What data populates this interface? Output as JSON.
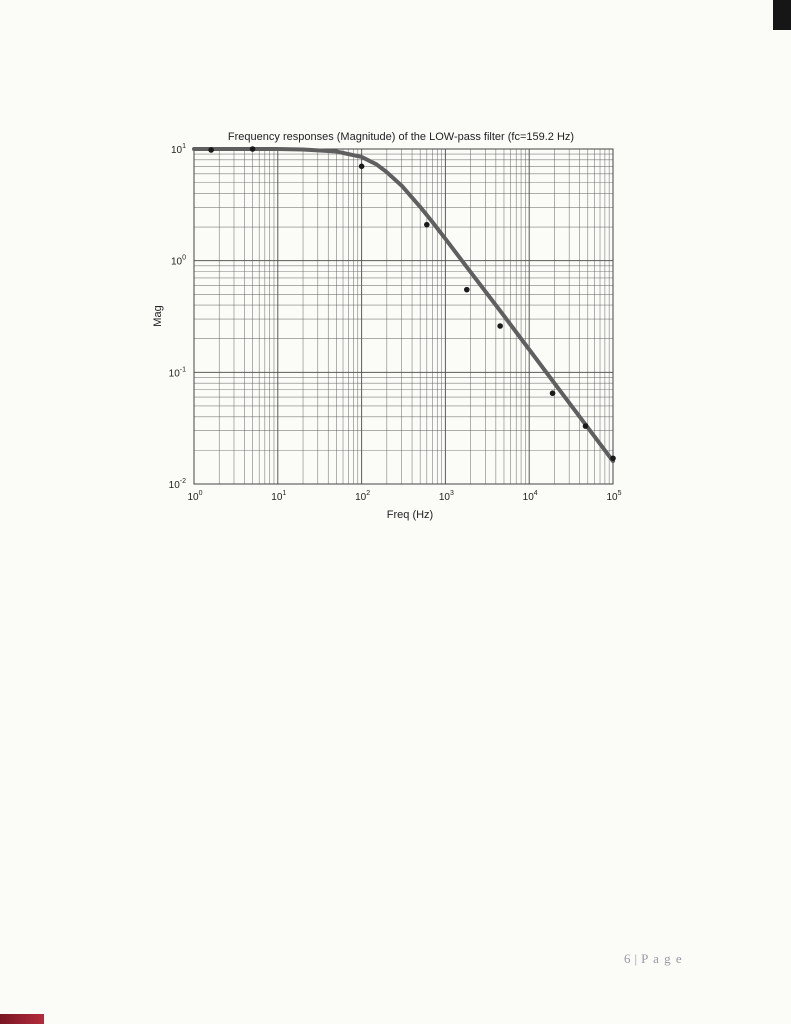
{
  "page": {
    "number": "6",
    "separator": "|",
    "label": "P a g e"
  },
  "colors": {
    "paper": "#fbfbf8",
    "grid": "#4a4a4a",
    "curve": "#5f5f5f",
    "markers": "#1a1a1a",
    "text": "#222222"
  },
  "chart_data": {
    "type": "line",
    "title": "Frequency responses (Magnitude) of the LOW-pass filter (fc=159.2 Hz)",
    "xlabel": "Freq (Hz)",
    "ylabel": "Mag",
    "xscale": "log",
    "yscale": "log",
    "xlim": [
      1,
      100000
    ],
    "ylim": [
      0.01,
      10
    ],
    "grid": true,
    "x_tick_labels": [
      {
        "base": "10",
        "exp": "0",
        "value": 1
      },
      {
        "base": "10",
        "exp": "1",
        "value": 10
      },
      {
        "base": "10",
        "exp": "2",
        "value": 100
      },
      {
        "base": "10",
        "exp": "3",
        "value": 1000
      },
      {
        "base": "10",
        "exp": "4",
        "value": 10000
      },
      {
        "base": "10",
        "exp": "5",
        "value": 100000
      }
    ],
    "y_tick_labels": [
      {
        "base": "10",
        "exp": "1",
        "value": 10
      },
      {
        "base": "10",
        "exp": "0",
        "value": 1
      },
      {
        "base": "10",
        "exp": "-1",
        "value": 0.1
      },
      {
        "base": "10",
        "exp": "-2",
        "value": 0.01
      }
    ],
    "series": [
      {
        "kind": "curve",
        "fc": 159.2,
        "passband_gain": 10,
        "x": [
          1,
          2,
          5,
          10,
          20,
          50,
          100,
          150,
          200,
          300,
          500,
          700,
          1000,
          2000,
          5000,
          10000,
          20000,
          50000,
          100000
        ],
        "y": [
          10,
          10,
          10,
          10,
          9.9,
          9.5,
          8.5,
          7.3,
          6.2,
          4.7,
          3.03,
          2.22,
          1.57,
          0.79,
          0.32,
          0.16,
          0.08,
          0.032,
          0.016
        ]
      },
      {
        "kind": "points",
        "x": [
          1.6,
          5,
          100,
          600,
          1800,
          4500,
          19000,
          47000,
          100000
        ],
        "y": [
          9.8,
          10,
          7,
          2.1,
          0.55,
          0.26,
          0.065,
          0.033,
          0.017
        ]
      }
    ]
  }
}
